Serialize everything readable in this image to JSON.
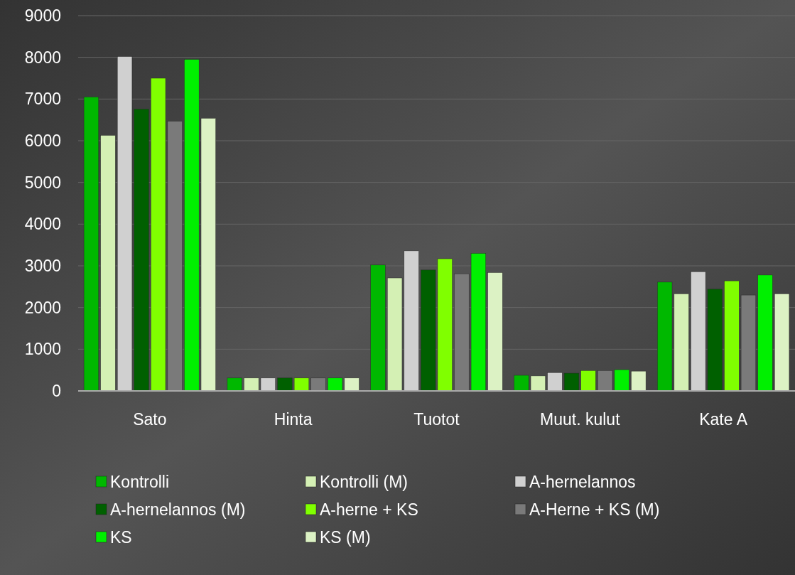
{
  "chart_data": {
    "type": "bar",
    "categories": [
      "Sato",
      "Hinta",
      "Tuotot",
      "Muut. kulut",
      "Kate A"
    ],
    "series": [
      {
        "name": "Kontrolli",
        "color": "#00b800",
        "values": [
          7050,
          310,
          3020,
          375,
          2610
        ]
      },
      {
        "name": "Kontrolli (M)",
        "color": "#d4f0b4",
        "values": [
          6130,
          310,
          2710,
          360,
          2330
        ]
      },
      {
        "name": "A-hernelannos",
        "color": "#d0d0d0",
        "values": [
          8020,
          310,
          3360,
          440,
          2860
        ]
      },
      {
        "name": "A-hernelannos (M)",
        "color": "#006000",
        "values": [
          6760,
          310,
          2900,
          425,
          2440
        ]
      },
      {
        "name": "A-herne + KS",
        "color": "#80ff00",
        "values": [
          7500,
          310,
          3170,
          490,
          2640
        ]
      },
      {
        "name": "A-Herne + KS (M)",
        "color": "#7a7a7a",
        "values": [
          6470,
          310,
          2810,
          490,
          2300
        ]
      },
      {
        "name": "KS",
        "color": "#00f000",
        "values": [
          7950,
          310,
          3300,
          510,
          2780
        ]
      },
      {
        "name": "KS (M)",
        "color": "#dcf2c4",
        "values": [
          6540,
          310,
          2840,
          475,
          2330
        ]
      }
    ],
    "ylim": [
      0,
      9000
    ],
    "yticks": [
      0,
      1000,
      2000,
      3000,
      4000,
      5000,
      6000,
      7000,
      8000,
      9000
    ],
    "grid": "y",
    "legend": "bottom"
  }
}
